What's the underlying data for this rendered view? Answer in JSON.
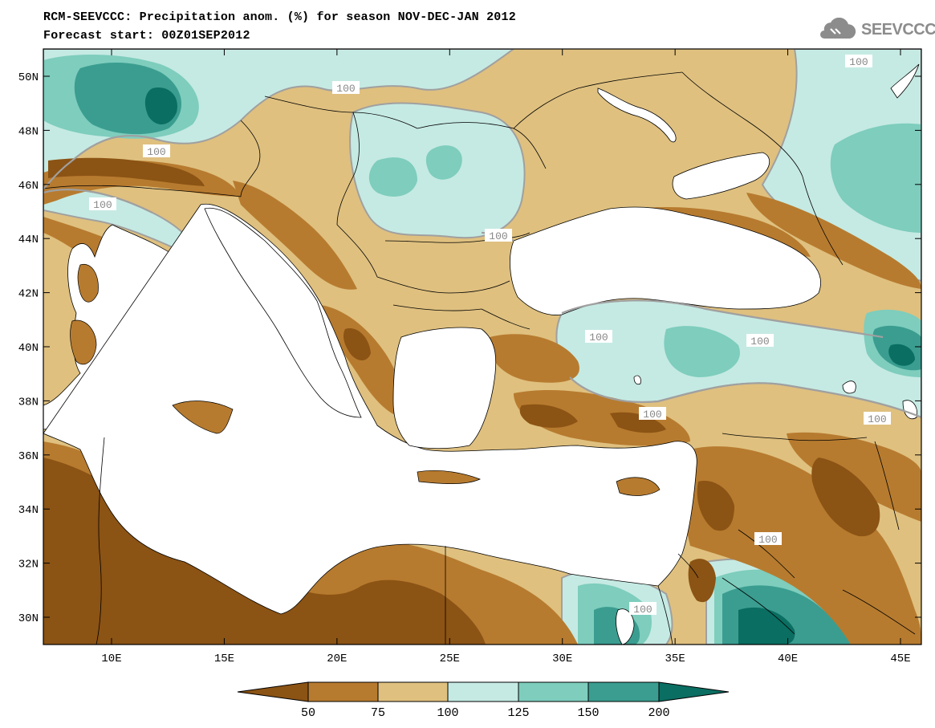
{
  "header": {
    "title": "RCM-SEEVCCC: Precipitation anom. (%) for season NOV-DEC-JAN 2012",
    "subtitle": "Forecast start: 00Z01SEP2012"
  },
  "logo": {
    "text": "SEEVCCC",
    "icon": "cloud-icon"
  },
  "map": {
    "variable": "Precipitation anomaly (%)",
    "lon_ticks": [
      "10E",
      "15E",
      "20E",
      "25E",
      "30E",
      "35E",
      "40E",
      "45E"
    ],
    "lat_ticks": [
      "50N",
      "48N",
      "46N",
      "44N",
      "42N",
      "40N",
      "38N",
      "36N",
      "34N",
      "32N",
      "30N"
    ],
    "contour_labels": [
      "100",
      "100",
      "100",
      "100",
      "100",
      "100",
      "100",
      "100",
      "100",
      "100",
      "100"
    ],
    "land_mask_color": "#ffffff",
    "contour_line_color": "#a0a0a0",
    "border_color": "#000000"
  },
  "colorbar": {
    "levels": [
      "50",
      "75",
      "100",
      "125",
      "150",
      "200"
    ],
    "colors": [
      "#8b5314",
      "#b77b2f",
      "#dfc07f",
      "#c5eae3",
      "#7ecdbd",
      "#3a9d90",
      "#0a6e62"
    ]
  }
}
